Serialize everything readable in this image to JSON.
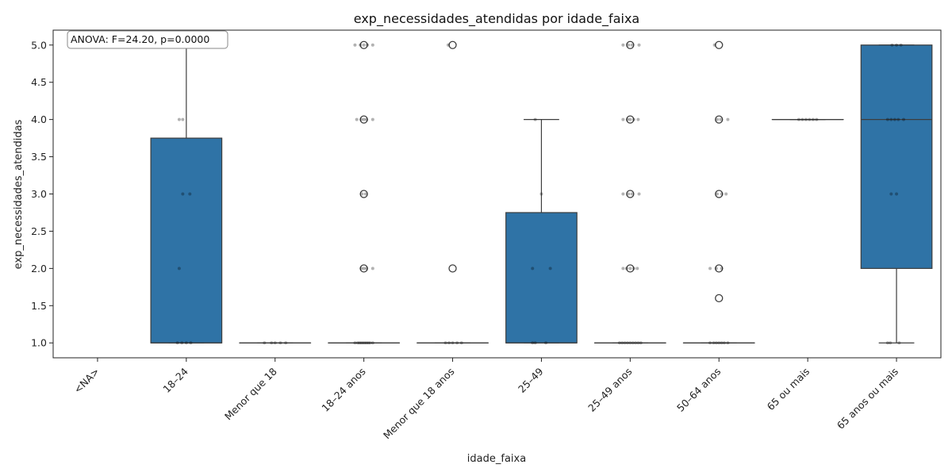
{
  "chart_data": {
    "type": "boxplot",
    "title": "exp_necessidades_atendidas por idade_faixa",
    "xlabel": "idade_faixa",
    "ylabel": "exp_necessidades_atendidas",
    "ylim": [
      0.8,
      5.2
    ],
    "yticks": [
      "1.0",
      "1.5",
      "2.0",
      "2.5",
      "3.0",
      "3.5",
      "4.0",
      "4.5",
      "5.0"
    ],
    "grid": false,
    "box_color": "#2f73a6",
    "annotation": "ANOVA: F=24.20, p=0.0000",
    "categories": [
      "<NA>",
      "18–24",
      "Menor que 18",
      "18–24 anos",
      "Menor que 18 anos",
      "25–49",
      "25–49 anos",
      "50–64 anos",
      "65 ou mais",
      "65 anos ou mais"
    ],
    "boxes": [
      null,
      {
        "q1": 1.0,
        "median": 1.0,
        "q3": 3.75,
        "whisker_low": 1.0,
        "whisker_high": 5.0,
        "outliers": []
      },
      {
        "q1": 1.0,
        "median": 1.0,
        "q3": 1.0,
        "whisker_low": 1.0,
        "whisker_high": 1.0,
        "outliers": []
      },
      {
        "q1": 1.0,
        "median": 1.0,
        "q3": 1.0,
        "whisker_low": 1.0,
        "whisker_high": 1.0,
        "outliers": [
          2.0,
          3.0,
          4.0,
          5.0
        ]
      },
      {
        "q1": 1.0,
        "median": 1.0,
        "q3": 1.0,
        "whisker_low": 1.0,
        "whisker_high": 1.0,
        "outliers": [
          2.0,
          5.0
        ]
      },
      {
        "q1": 1.0,
        "median": 1.0,
        "q3": 2.75,
        "whisker_low": 1.0,
        "whisker_high": 4.0,
        "outliers": []
      },
      {
        "q1": 1.0,
        "median": 1.0,
        "q3": 1.0,
        "whisker_low": 1.0,
        "whisker_high": 1.0,
        "outliers": [
          2.0,
          3.0,
          4.0,
          5.0
        ]
      },
      {
        "q1": 1.0,
        "median": 1.0,
        "q3": 1.0,
        "whisker_low": 1.0,
        "whisker_high": 1.0,
        "outliers": [
          1.6,
          2.0,
          3.0,
          4.0,
          5.0
        ]
      },
      {
        "q1": 4.0,
        "median": 4.0,
        "q3": 4.0,
        "whisker_low": 4.0,
        "whisker_high": 4.0,
        "outliers": []
      },
      {
        "q1": 2.0,
        "median": 4.0,
        "q3": 5.0,
        "whisker_low": 1.0,
        "whisker_high": 5.0,
        "outliers": []
      }
    ],
    "strip_points": [
      [],
      [
        [
          -0.1,
          1.0
        ],
        [
          -0.05,
          1.0
        ],
        [
          0.0,
          1.0
        ],
        [
          0.05,
          1.0
        ],
        [
          -0.08,
          2.0
        ],
        [
          -0.04,
          3.0
        ],
        [
          0.04,
          3.0
        ],
        [
          -0.08,
          4.0
        ],
        [
          -0.04,
          4.0
        ],
        [
          0.0,
          5.0
        ],
        [
          0.05,
          5.0
        ]
      ],
      [
        [
          -0.12,
          1.0
        ],
        [
          -0.04,
          1.0
        ],
        [
          0.0,
          1.0
        ],
        [
          0.06,
          1.0
        ],
        [
          0.12,
          1.0
        ]
      ],
      [
        [
          -0.1,
          1.0
        ],
        [
          -0.07,
          1.0
        ],
        [
          -0.05,
          1.0
        ],
        [
          -0.03,
          1.0
        ],
        [
          -0.01,
          1.0
        ],
        [
          0.01,
          1.0
        ],
        [
          0.03,
          1.0
        ],
        [
          0.05,
          1.0
        ],
        [
          0.07,
          1.0
        ],
        [
          0.1,
          1.0
        ],
        [
          -0.03,
          2.0
        ],
        [
          0.0,
          2.0
        ],
        [
          0.03,
          2.0
        ],
        [
          0.1,
          2.0
        ],
        [
          -0.02,
          3.0
        ],
        [
          0.02,
          3.0
        ],
        [
          -0.08,
          4.0
        ],
        [
          -0.03,
          4.0
        ],
        [
          0.0,
          4.0
        ],
        [
          0.03,
          4.0
        ],
        [
          0.1,
          4.0
        ],
        [
          -0.1,
          5.0
        ],
        [
          -0.04,
          5.0
        ],
        [
          0.0,
          5.0
        ],
        [
          0.04,
          5.0
        ],
        [
          0.1,
          5.0
        ]
      ],
      [
        [
          -0.08,
          1.0
        ],
        [
          -0.04,
          1.0
        ],
        [
          0.0,
          1.0
        ],
        [
          0.05,
          1.0
        ],
        [
          0.1,
          1.0
        ],
        [
          -0.05,
          5.0
        ]
      ],
      [
        [
          -0.1,
          1.0
        ],
        [
          -0.07,
          1.0
        ],
        [
          0.05,
          1.0
        ],
        [
          -0.1,
          2.0
        ],
        [
          0.1,
          2.0
        ],
        [
          0.0,
          3.0
        ],
        [
          -0.07,
          4.0
        ]
      ],
      [
        [
          -0.12,
          1.0
        ],
        [
          -0.09,
          1.0
        ],
        [
          -0.06,
          1.0
        ],
        [
          -0.03,
          1.0
        ],
        [
          0.0,
          1.0
        ],
        [
          0.03,
          1.0
        ],
        [
          0.06,
          1.0
        ],
        [
          0.09,
          1.0
        ],
        [
          0.12,
          1.0
        ],
        [
          -0.08,
          2.0
        ],
        [
          -0.04,
          2.0
        ],
        [
          0.0,
          2.0
        ],
        [
          0.04,
          2.0
        ],
        [
          0.08,
          2.0
        ],
        [
          -0.08,
          3.0
        ],
        [
          -0.02,
          3.0
        ],
        [
          0.02,
          3.0
        ],
        [
          0.1,
          3.0
        ],
        [
          -0.08,
          4.0
        ],
        [
          -0.03,
          4.0
        ],
        [
          0.0,
          4.0
        ],
        [
          0.04,
          4.0
        ],
        [
          0.09,
          4.0
        ],
        [
          -0.08,
          5.0
        ],
        [
          -0.02,
          5.0
        ],
        [
          0.02,
          5.0
        ],
        [
          0.1,
          5.0
        ]
      ],
      [
        [
          -0.1,
          1.0
        ],
        [
          -0.06,
          1.0
        ],
        [
          -0.03,
          1.0
        ],
        [
          0.0,
          1.0
        ],
        [
          0.03,
          1.0
        ],
        [
          0.06,
          1.0
        ],
        [
          0.1,
          1.0
        ],
        [
          -0.1,
          2.0
        ],
        [
          -0.03,
          2.0
        ],
        [
          0.03,
          2.0
        ],
        [
          -0.02,
          3.0
        ],
        [
          0.03,
          3.0
        ],
        [
          0.08,
          3.0
        ],
        [
          -0.02,
          4.0
        ],
        [
          0.02,
          4.0
        ],
        [
          0.1,
          4.0
        ],
        [
          -0.05,
          5.0
        ]
      ],
      [
        [
          -0.1,
          4.0
        ],
        [
          -0.06,
          4.0
        ],
        [
          -0.02,
          4.0
        ],
        [
          0.02,
          4.0
        ],
        [
          0.06,
          4.0
        ],
        [
          0.1,
          4.0
        ]
      ],
      [
        [
          -0.1,
          1.0
        ],
        [
          -0.07,
          1.0
        ],
        [
          0.03,
          1.0
        ],
        [
          -0.06,
          3.0
        ],
        [
          0.0,
          3.0
        ],
        [
          -0.1,
          4.0
        ],
        [
          -0.06,
          4.0
        ],
        [
          -0.02,
          4.0
        ],
        [
          0.02,
          4.0
        ],
        [
          0.08,
          4.0
        ],
        [
          -0.05,
          5.0
        ],
        [
          0.0,
          5.0
        ],
        [
          0.05,
          5.0
        ]
      ]
    ]
  }
}
